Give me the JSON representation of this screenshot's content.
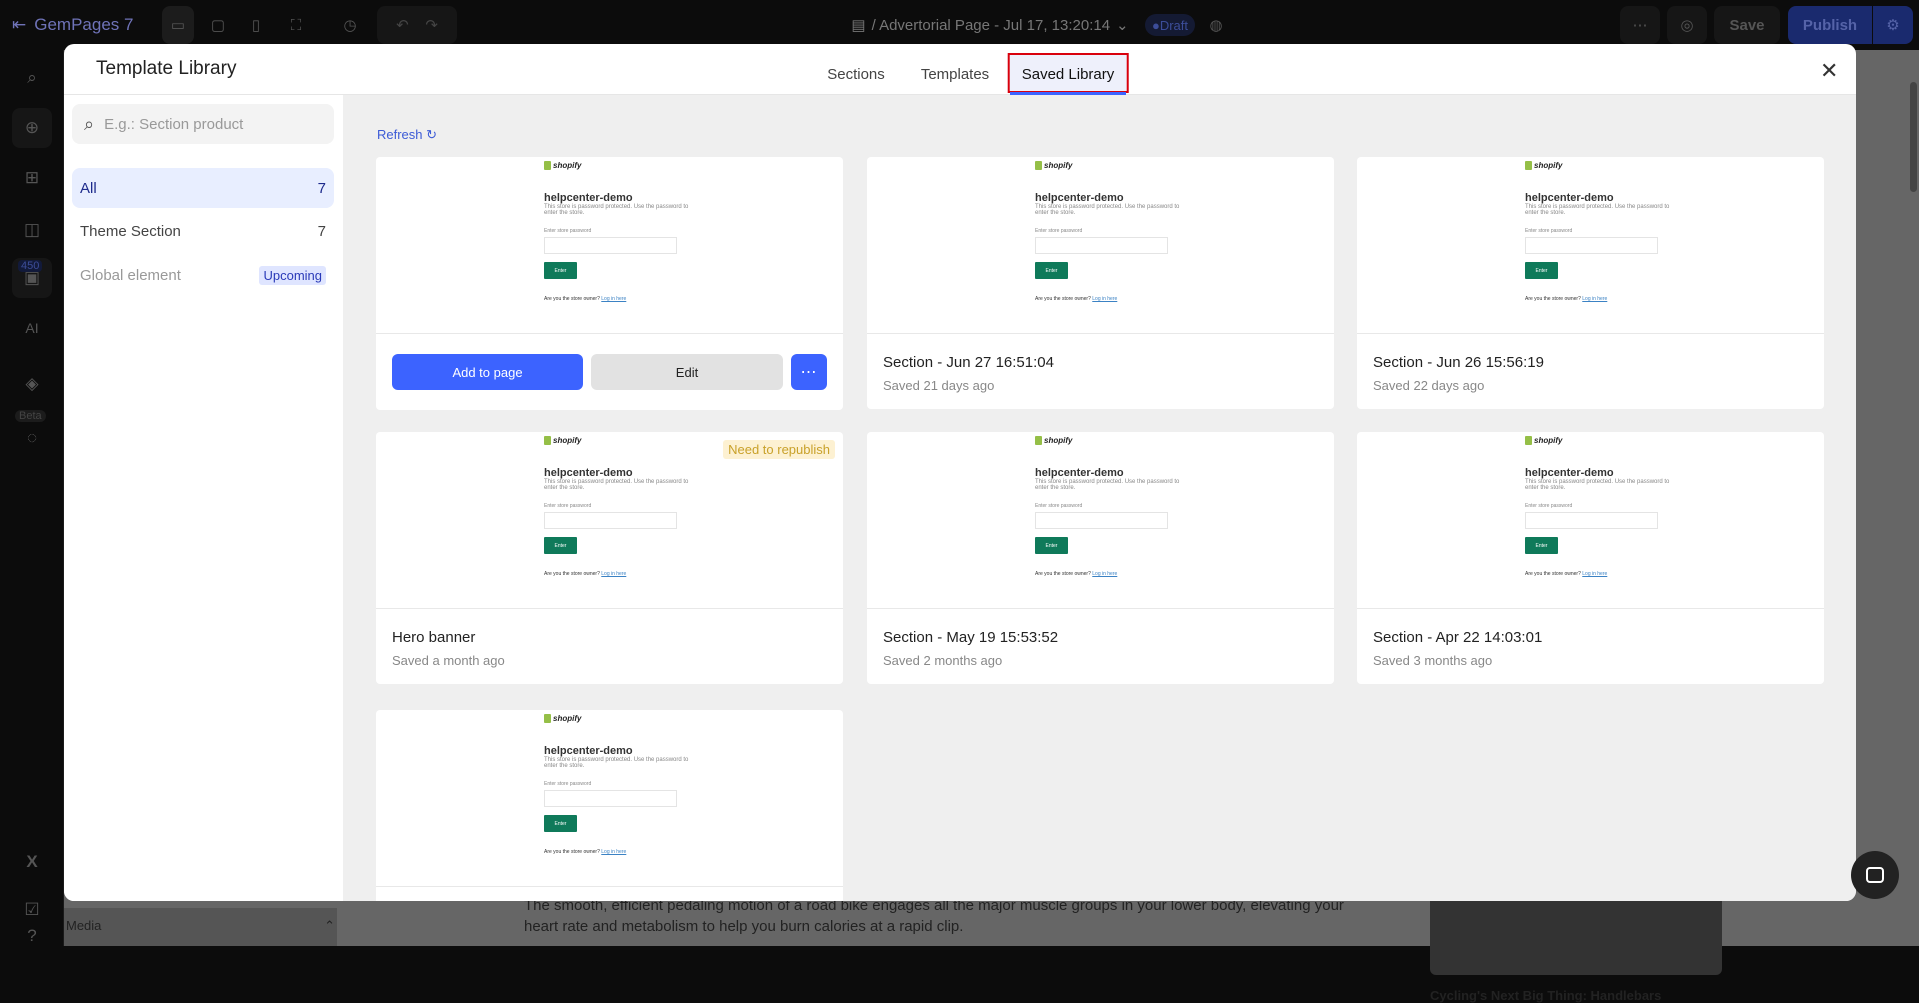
{
  "topbar": {
    "app_name": "GemPages 7",
    "page_title": "/ Advertorial Page - Jul 17, 13:20:14",
    "status": "Draft",
    "more_label": "⋯",
    "save_label": "Save",
    "publish_label": "Publish"
  },
  "rail": {
    "badge_count": "450",
    "ai_label": "AI",
    "beta_label": "Beta"
  },
  "background_page": {
    "paragraph": "The smooth, efficient pedaling motion of a road bike engages all the major muscle groups in your lower body, elevating your heart rate and metabolism to help you burn calories at a rapid clip.",
    "caption": "Cycling's Next Big Thing: Handlebars",
    "media_label": "Media"
  },
  "modal": {
    "title": "Template Library",
    "tabs": [
      {
        "label": "Sections"
      },
      {
        "label": "Templates"
      },
      {
        "label": "Saved Library",
        "active": true
      }
    ],
    "search": {
      "placeholder": "E.g.: Section product",
      "value": ""
    },
    "categories": [
      {
        "label": "All",
        "count": "7"
      },
      {
        "label": "Theme Section",
        "count": "7"
      },
      {
        "label": "Global element",
        "badge": "Upcoming"
      }
    ],
    "refresh_label": "Refresh",
    "actions": {
      "add": "Add to page",
      "edit": "Edit",
      "more": "⋯"
    },
    "preview": {
      "brand": "shopify",
      "store": "helpcenter-demo",
      "desc": "This store is password protected. Use the password to enter the store.",
      "pw_label": "Enter store password",
      "enter": "Enter",
      "owner": "Are you the store owner?",
      "login": "Log in here"
    },
    "items": [
      {
        "name": "",
        "saved": "",
        "hovered": true
      },
      {
        "name": "Section - Jun 27 16:51:04",
        "saved": "Saved 21 days ago"
      },
      {
        "name": "Section - Jun 26 15:56:19",
        "saved": "Saved 22 days ago"
      },
      {
        "name": "Hero banner",
        "saved": "Saved a month ago",
        "badge": "Need to republish"
      },
      {
        "name": "Section - May 19 15:53:52",
        "saved": "Saved 2 months ago"
      },
      {
        "name": "Section - Apr 22 14:03:01",
        "saved": "Saved 3 months ago"
      },
      {
        "name": "",
        "saved": ""
      }
    ]
  }
}
